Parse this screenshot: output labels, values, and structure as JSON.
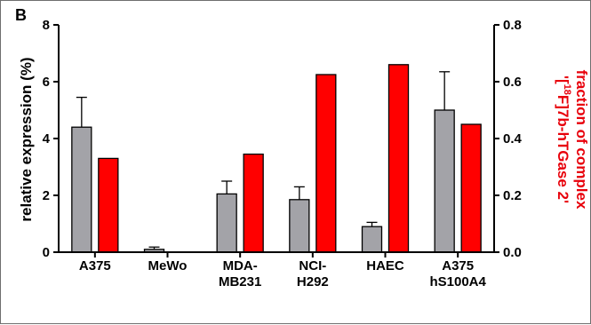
{
  "chart_data": {
    "type": "bar",
    "panel_label": "B",
    "categories": [
      [
        "A375"
      ],
      [
        "MeWo"
      ],
      [
        "MDA-",
        "MB231"
      ],
      [
        "NCI-",
        "H292"
      ],
      [
        "HAEC"
      ],
      [
        "A375",
        "hS100A4"
      ]
    ],
    "series": [
      {
        "axis": "left",
        "color": "#a3a3a8",
        "values": [
          4.4,
          0.1,
          2.05,
          1.85,
          0.9,
          5.0
        ],
        "errors": [
          1.05,
          0.08,
          0.45,
          0.45,
          0.15,
          1.35
        ]
      },
      {
        "axis": "right",
        "color": "#ff0000",
        "values": [
          0.33,
          0,
          0.345,
          0.625,
          0.66,
          0.45
        ]
      }
    ],
    "y_left": {
      "label": "relative expression (%)",
      "ylim": [
        0,
        8
      ],
      "ticks": [
        "0",
        "2",
        "4",
        "6",
        "8"
      ]
    },
    "y_right": {
      "label_line1": "fraction of complex",
      "label_line2_pre": "'[",
      "label_line2_sup": "18",
      "label_line2_post": "F]7b-hTGase 2'",
      "label_color": "#e8000b",
      "ylim": [
        0,
        0.8
      ],
      "ticks": [
        "0.0",
        "0.2",
        "0.4",
        "0.6",
        "0.8"
      ]
    },
    "grid": false
  }
}
